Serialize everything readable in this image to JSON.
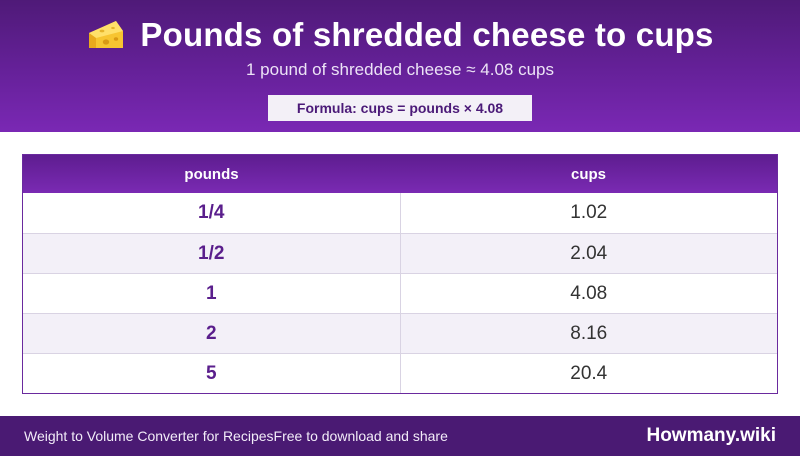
{
  "header": {
    "icon": "cheese-icon",
    "title": "Pounds of shredded cheese to cups",
    "subtitle": "1 pound of shredded cheese ≈ 4.08 cups",
    "formula": "Formula: cups = pounds × 4.08"
  },
  "table": {
    "columns": [
      "pounds",
      "cups"
    ],
    "rows": [
      {
        "pounds": "1/4",
        "cups": "1.02"
      },
      {
        "pounds": "1/2",
        "cups": "2.04"
      },
      {
        "pounds": "1",
        "cups": "4.08"
      },
      {
        "pounds": "2",
        "cups": "8.16"
      },
      {
        "pounds": "5",
        "cups": "20.4"
      }
    ]
  },
  "footer": {
    "app_name": "Weight to Volume Converter for Recipes",
    "tagline": "Free to download and share",
    "brand": "Howmany.wiki"
  },
  "colors": {
    "header_purple": "#66219a",
    "footer_purple": "#4a1a73",
    "accent_text": "#5a1e8c"
  }
}
